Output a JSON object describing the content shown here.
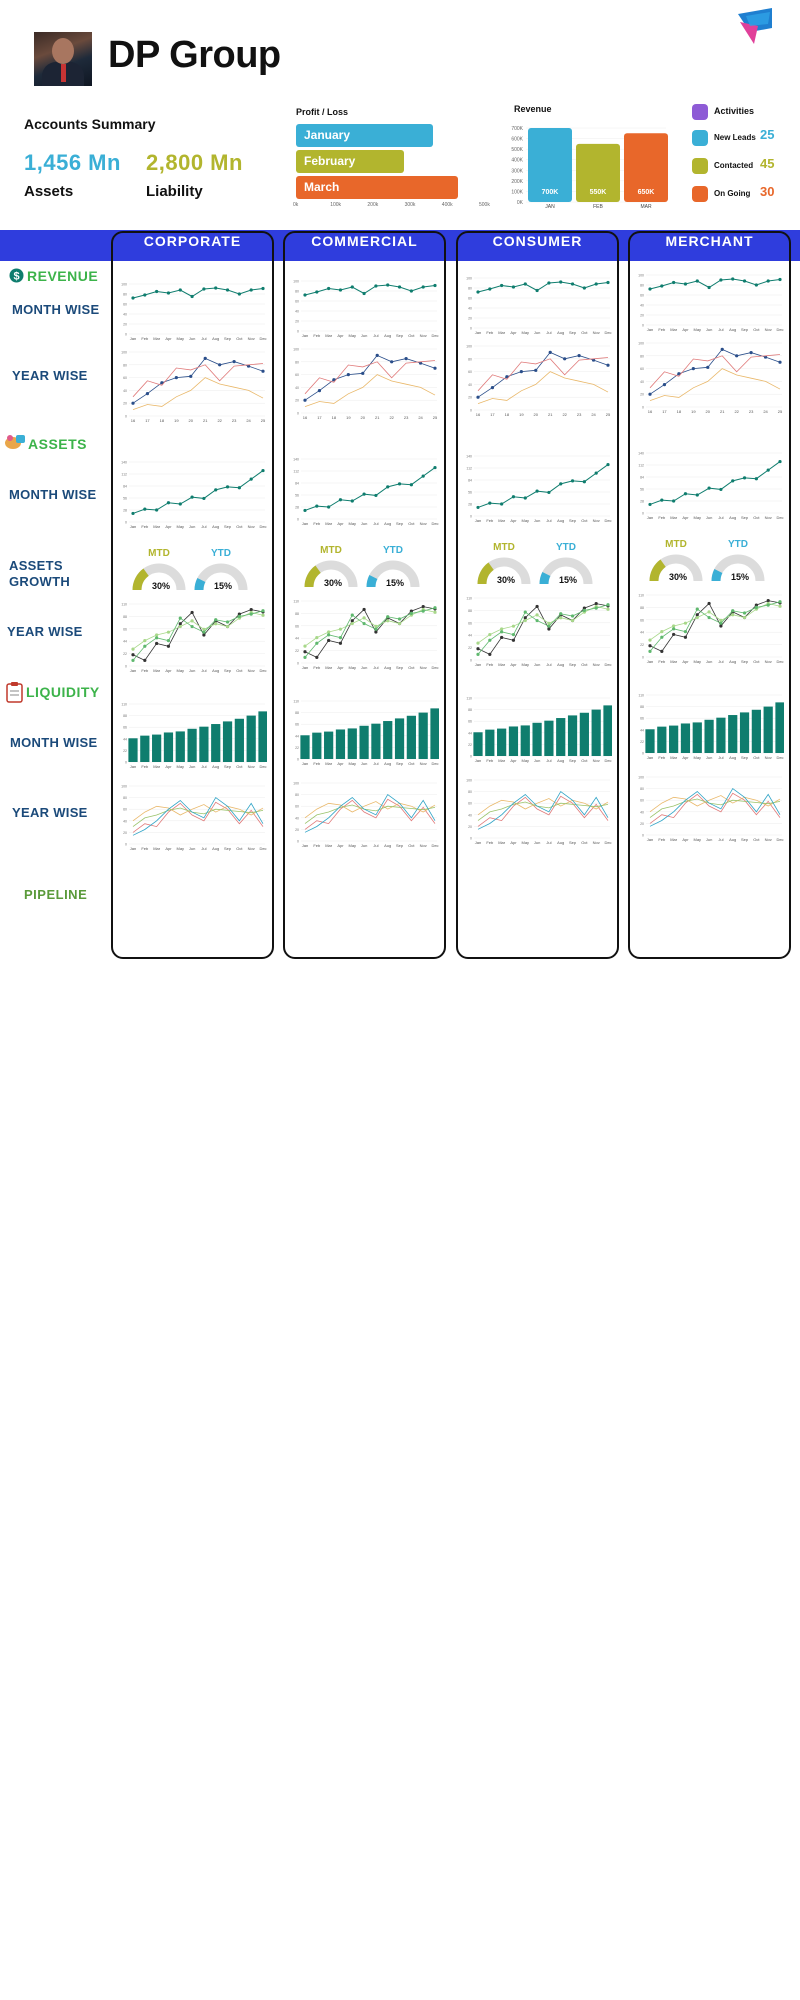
{
  "header": {
    "company": "DP Group"
  },
  "accounts": {
    "title": "Accounts Summary",
    "assets_value": "1,456 Mn",
    "assets_label": "Assets",
    "liability_value": "2,800 Mn",
    "liability_label": "Liability"
  },
  "colors": {
    "blue": "#3aafd6",
    "olive": "#b2b52e",
    "orange": "#e8672a",
    "teal": "#0f7d6e",
    "band": "#2f3ddd",
    "navy": "#1b4a7a",
    "green": "#3cb34a"
  },
  "activities": {
    "title": "Activities",
    "items": [
      {
        "label": "New Leads",
        "value": "25",
        "icon": "search-icon"
      },
      {
        "label": "Contacted",
        "value": "45",
        "icon": "chat-icon"
      },
      {
        "label": "On Going",
        "value": "30",
        "icon": "clipboard-icon"
      }
    ]
  },
  "segments": [
    "CORPORATE",
    "COMMERCIAL",
    "CONSUMER",
    "MERCHANT"
  ],
  "sections": {
    "revenue": "REVENUE",
    "assets": "ASSETS",
    "liquidity": "LIQUIDITY",
    "pipeline": "PIPELINE"
  },
  "row_labels": {
    "month_wise": "MONTH WISE",
    "year_wise": "YEAR WISE",
    "assets_growth_1": "ASSETS",
    "assets_growth_2": "GROWTH"
  },
  "gauges": {
    "mtd_label": "MTD",
    "mtd_value": "30%",
    "mtd_fraction": 0.3,
    "ytd_label": "YTD",
    "ytd_value": "15%",
    "ytd_fraction": 0.15
  },
  "chart_data": [
    {
      "id": "profit-loss",
      "type": "bar",
      "orientation": "horizontal",
      "title": "Profit / Loss",
      "categories": [
        "January",
        "February",
        "March"
      ],
      "values": [
        85,
        67,
        100
      ],
      "xlim": [
        0,
        115
      ],
      "x_ticks": [
        "0k",
        "100k",
        "200k",
        "300k",
        "400k",
        "500k"
      ]
    },
    {
      "id": "revenue",
      "type": "bar",
      "title": "Revenue",
      "categories": [
        "JAN",
        "FEB",
        "MAR"
      ],
      "values": [
        700,
        550,
        650
      ],
      "data_labels": [
        "700K",
        "550K",
        "650K"
      ],
      "ylim": [
        0,
        700
      ],
      "y_ticks": [
        "0K",
        "100K",
        "200K",
        "300K",
        "400K",
        "500K",
        "600K",
        "700K"
      ]
    },
    {
      "id": "segment-revenue-month",
      "type": "line",
      "categories": [
        "Jan",
        "Feb",
        "Mar",
        "Apr",
        "May",
        "Jun",
        "Jul",
        "Aug",
        "Sep",
        "Oct",
        "Nov",
        "Dec"
      ],
      "values": [
        72,
        78,
        85,
        82,
        88,
        75,
        90,
        92,
        88,
        80,
        88,
        91
      ],
      "ylim": [
        0,
        100
      ]
    },
    {
      "id": "segment-revenue-year",
      "type": "line",
      "categories": [
        "16",
        "17",
        "18",
        "19",
        "20",
        "21",
        "22",
        "23",
        "24",
        "25"
      ],
      "series": [
        {
          "values": [
            20,
            35,
            52,
            60,
            62,
            90,
            80,
            85,
            78,
            70
          ]
        },
        {
          "values": [
            30,
            55,
            48,
            75,
            72,
            80,
            55,
            78,
            80,
            82
          ]
        },
        {
          "values": [
            10,
            18,
            15,
            30,
            40,
            60,
            50,
            45,
            40,
            28
          ]
        }
      ],
      "ylim": [
        0,
        100
      ]
    },
    {
      "id": "segment-assets-month",
      "type": "line",
      "categories": [
        "Jan",
        "Feb",
        "Mar",
        "Apr",
        "May",
        "Jun",
        "Jul",
        "Aug",
        "Sep",
        "Oct",
        "Nov",
        "Dec"
      ],
      "values": [
        20,
        30,
        28,
        45,
        42,
        58,
        55,
        75,
        82,
        80,
        100,
        120
      ],
      "ylim": [
        0,
        140
      ]
    },
    {
      "id": "segment-assets-year",
      "type": "line",
      "categories": [
        "Jan",
        "Feb",
        "Mar",
        "Apr",
        "May",
        "Jun",
        "Jul",
        "Aug",
        "Sep",
        "Oct",
        "Nov",
        "Dec"
      ],
      "series": [
        {
          "values": [
            20,
            10,
            40,
            35,
            75,
            95,
            55,
            80,
            70,
            92,
            100,
            96
          ]
        },
        {
          "values": [
            30,
            45,
            55,
            60,
            70,
            80,
            65,
            75,
            70,
            85,
            95,
            90
          ]
        },
        {
          "values": [
            10,
            35,
            50,
            45,
            85,
            70,
            60,
            82,
            78,
            88,
            92,
            98
          ]
        }
      ],
      "ylim": [
        0,
        110
      ]
    },
    {
      "id": "segment-liquidity-month",
      "type": "bar",
      "categories": [
        "Jan",
        "Feb",
        "Mar",
        "Apr",
        "May",
        "Jun",
        "Jul",
        "Aug",
        "Sep",
        "Oct",
        "Nov",
        "Dec"
      ],
      "values": [
        45,
        50,
        52,
        56,
        58,
        63,
        67,
        72,
        77,
        82,
        88,
        96
      ],
      "ylim": [
        0,
        110
      ]
    },
    {
      "id": "segment-liquidity-year",
      "type": "line",
      "categories": [
        "Jan",
        "Feb",
        "Mar",
        "Apr",
        "May",
        "Jun",
        "Jul",
        "Aug",
        "Sep",
        "Oct",
        "Nov",
        "Dec"
      ],
      "series": [
        {
          "values": [
            20,
            35,
            30,
            55,
            70,
            50,
            40,
            72,
            60,
            35,
            58,
            30
          ]
        },
        {
          "values": [
            40,
            55,
            65,
            62,
            50,
            60,
            68,
            55,
            65,
            60,
            50,
            62
          ]
        },
        {
          "values": [
            30,
            45,
            50,
            58,
            62,
            55,
            52,
            60,
            58,
            56,
            54,
            58
          ]
        },
        {
          "values": [
            15,
            25,
            40,
            60,
            75,
            55,
            45,
            80,
            65,
            40,
            70,
            35
          ]
        }
      ],
      "ylim": [
        0,
        100
      ]
    }
  ]
}
